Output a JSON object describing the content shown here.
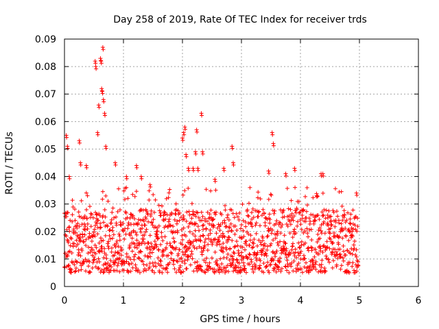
{
  "chart_data": {
    "type": "scatter",
    "title": "Day 258 of 2019, Rate Of TEC Index for receiver trds",
    "xlabel": "GPS time / hours",
    "ylabel": "ROTI / TECUs",
    "xlim": [
      0,
      6
    ],
    "ylim": [
      0,
      0.09
    ],
    "x_ticks": [
      0,
      1,
      2,
      3,
      4,
      5,
      6
    ],
    "x_tick_labels": [
      "0",
      "1",
      "2",
      "3",
      "4",
      "5",
      "6"
    ],
    "y_ticks": [
      0,
      0.01,
      0.02,
      0.03,
      0.04,
      0.05,
      0.06,
      0.07,
      0.08,
      0.09
    ],
    "y_tick_labels": [
      "0",
      "0.01",
      "0.02",
      "0.03",
      "0.04",
      "0.05",
      "0.06",
      "0.07",
      "0.08",
      "0.09"
    ],
    "grid": true,
    "marker": "+",
    "series": [
      {
        "name": "ROTI",
        "color": "#ff0000",
        "x_range": [
          0,
          4.98
        ],
        "baseline_range": [
          0.005,
          0.028
        ],
        "notable_points": [
          {
            "x": 0.03,
            "y": 0.055
          },
          {
            "x": 0.05,
            "y": 0.051
          },
          {
            "x": 0.08,
            "y": 0.04
          },
          {
            "x": 0.25,
            "y": 0.053
          },
          {
            "x": 0.27,
            "y": 0.045
          },
          {
            "x": 0.37,
            "y": 0.044
          },
          {
            "x": 0.52,
            "y": 0.082
          },
          {
            "x": 0.53,
            "y": 0.08
          },
          {
            "x": 0.56,
            "y": 0.056
          },
          {
            "x": 0.58,
            "y": 0.066
          },
          {
            "x": 0.61,
            "y": 0.083
          },
          {
            "x": 0.62,
            "y": 0.082
          },
          {
            "x": 0.63,
            "y": 0.072
          },
          {
            "x": 0.64,
            "y": 0.071
          },
          {
            "x": 0.65,
            "y": 0.087
          },
          {
            "x": 0.66,
            "y": 0.068
          },
          {
            "x": 0.68,
            "y": 0.063
          },
          {
            "x": 0.7,
            "y": 0.051
          },
          {
            "x": 0.86,
            "y": 0.045
          },
          {
            "x": 1.05,
            "y": 0.04
          },
          {
            "x": 1.22,
            "y": 0.044
          },
          {
            "x": 1.3,
            "y": 0.04
          },
          {
            "x": 1.45,
            "y": 0.037
          },
          {
            "x": 2.0,
            "y": 0.054
          },
          {
            "x": 2.02,
            "y": 0.056
          },
          {
            "x": 2.04,
            "y": 0.058
          },
          {
            "x": 2.06,
            "y": 0.048
          },
          {
            "x": 2.1,
            "y": 0.043
          },
          {
            "x": 2.18,
            "y": 0.043
          },
          {
            "x": 2.22,
            "y": 0.049
          },
          {
            "x": 2.24,
            "y": 0.057
          },
          {
            "x": 2.26,
            "y": 0.043
          },
          {
            "x": 2.32,
            "y": 0.063
          },
          {
            "x": 2.34,
            "y": 0.049
          },
          {
            "x": 2.55,
            "y": 0.039
          },
          {
            "x": 2.7,
            "y": 0.043
          },
          {
            "x": 2.84,
            "y": 0.051
          },
          {
            "x": 2.86,
            "y": 0.045
          },
          {
            "x": 3.46,
            "y": 0.042
          },
          {
            "x": 3.52,
            "y": 0.056
          },
          {
            "x": 3.54,
            "y": 0.052
          },
          {
            "x": 3.75,
            "y": 0.041
          },
          {
            "x": 3.9,
            "y": 0.043
          },
          {
            "x": 4.35,
            "y": 0.041
          },
          {
            "x": 4.38,
            "y": 0.041
          },
          {
            "x": 4.95,
            "y": 0.034
          }
        ]
      }
    ]
  }
}
